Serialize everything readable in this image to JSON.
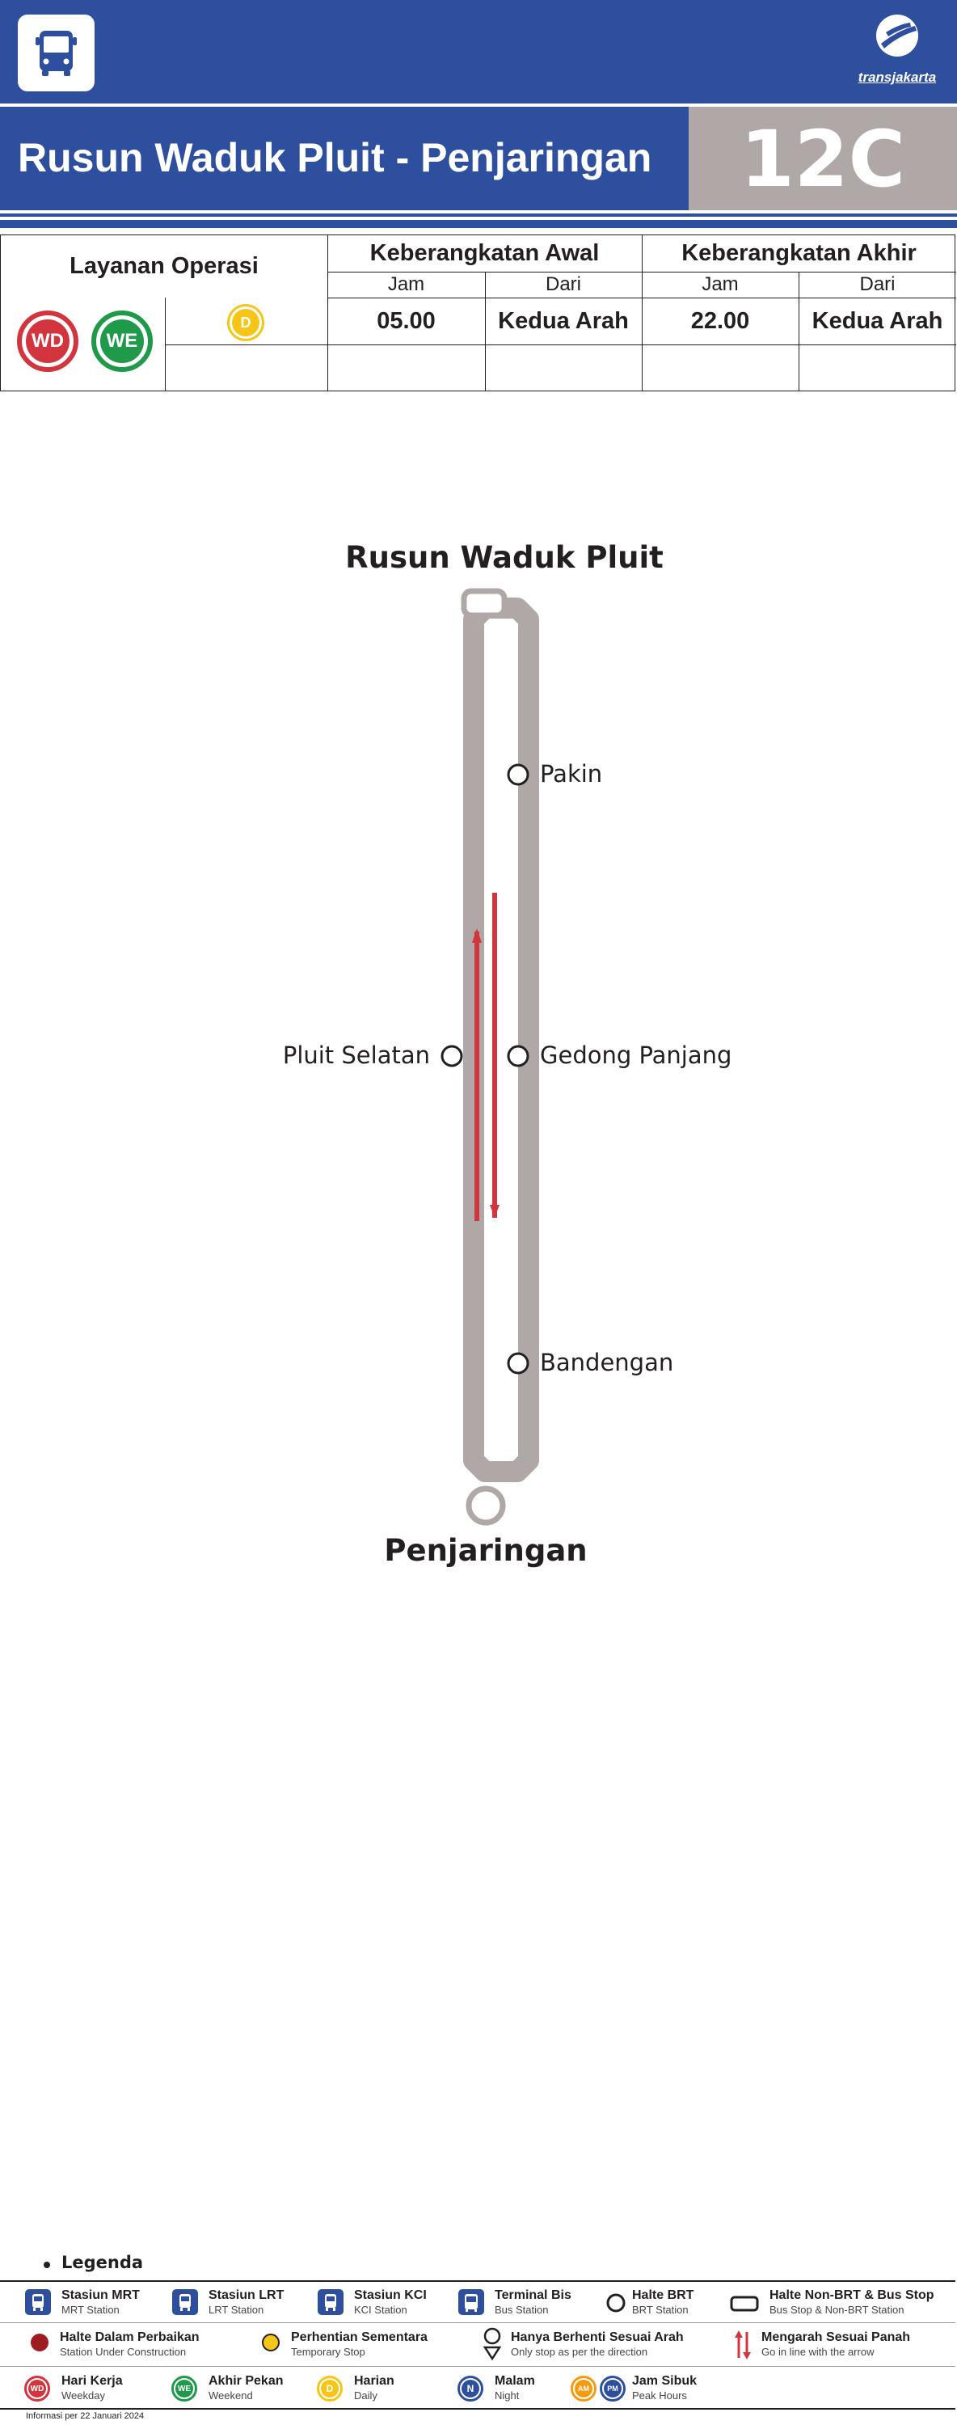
{
  "header": {
    "bus_icon": "bus-icon",
    "brand_name": "transjakarta",
    "route_name": "Rusun Waduk Pluit - Penjaringan",
    "route_code": "12C",
    "colors": {
      "primary": "#2e4f9e",
      "route_gray": "#b0a8a7",
      "direction_red": "#d2353d"
    }
  },
  "schedule": {
    "service_header": "Layanan Operasi",
    "first_departure_header": "Keberangkatan Awal",
    "last_departure_header": "Keberangkatan Akhir",
    "col_time": "Jam",
    "col_from": "Dari",
    "service_badges": [
      "WD",
      "WE",
      "D"
    ],
    "first_time": "05.00",
    "first_from": "Kedua Arah",
    "last_time": "22.00",
    "last_from": "Kedua Arah"
  },
  "route_map": {
    "start_terminal": "Rusun Waduk Pluit",
    "end_terminal": "Penjaringan",
    "stops": [
      {
        "name": "Pakin",
        "side": "right"
      },
      {
        "name": "Pluit Selatan",
        "side": "left"
      },
      {
        "name": "Gedong Panjang",
        "side": "right"
      },
      {
        "name": "Bandengan",
        "side": "right"
      }
    ]
  },
  "legend": {
    "title": "Legenda",
    "items": [
      {
        "title": "Stasiun MRT",
        "subtitle": "MRT Station",
        "icon": "mrt-station-icon"
      },
      {
        "title": "Stasiun LRT",
        "subtitle": "LRT Station",
        "icon": "lrt-station-icon"
      },
      {
        "title": "Stasiun KCI",
        "subtitle": "KCI Station",
        "icon": "kci-station-icon"
      },
      {
        "title": "Terminal Bis",
        "subtitle": "Bus Station",
        "icon": "bus-terminal-icon"
      },
      {
        "title": "Halte BRT",
        "subtitle": "BRT Station",
        "icon": "brt-stop-icon"
      },
      {
        "title": "Halte Non-BRT & Bus Stop",
        "subtitle": "Bus Stop & Non-BRT Station",
        "icon": "non-brt-stop-icon"
      },
      {
        "title": "Halte Dalam Perbaikan",
        "subtitle": "Station Under Construction",
        "icon": "under-construction-icon"
      },
      {
        "title": "Perhentian Sementara",
        "subtitle": "Temporary Stop",
        "icon": "temporary-stop-icon"
      },
      {
        "title": "Hanya Berhenti Sesuai Arah",
        "subtitle": "Only stop as per the direction",
        "icon": "one-direction-stop-icon"
      },
      {
        "title": "Mengarah Sesuai Panah",
        "subtitle": "Go in line with the arrow",
        "icon": "direction-arrow-icon"
      },
      {
        "title": "Hari Kerja",
        "subtitle": "Weekday",
        "icon": "weekday-icon",
        "badge": "WD"
      },
      {
        "title": "Akhir Pekan",
        "subtitle": "Weekend",
        "icon": "weekend-icon",
        "badge": "WE"
      },
      {
        "title": "Harian",
        "subtitle": "Daily",
        "icon": "daily-icon",
        "badge": "D"
      },
      {
        "title": "Malam",
        "subtitle": "Night",
        "icon": "night-icon",
        "badge": "N"
      },
      {
        "title": "Jam Sibuk",
        "subtitle": "Peak Hours",
        "icon": "peak-hours-icon",
        "badge_am": "AM",
        "badge_pm": "PM"
      }
    ]
  },
  "footer": {
    "info_date": "Informasi per 22 Januari 2024"
  }
}
